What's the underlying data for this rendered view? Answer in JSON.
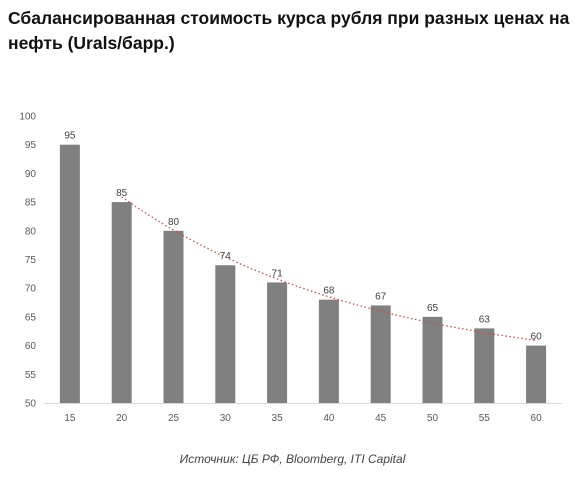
{
  "title": "Сбалансированная стоимость курса рубля при разных ценах на нефть (Urals/барр.)",
  "source": "Источник: ЦБ РФ, Bloomberg, ITI Capital",
  "chart_data": {
    "type": "bar",
    "title": "",
    "xlabel": "",
    "ylabel": "",
    "categories": [
      "15",
      "20",
      "25",
      "30",
      "35",
      "40",
      "45",
      "50",
      "55",
      "60"
    ],
    "series": [
      {
        "values": [
          95,
          85,
          80,
          74,
          71,
          68,
          67,
          65,
          63,
          60
        ]
      }
    ],
    "ylim": [
      50,
      100
    ],
    "yticks": [
      50,
      55,
      60,
      65,
      70,
      75,
      80,
      85,
      90,
      95,
      100
    ],
    "data_labels": true,
    "grid": false,
    "legend": "none",
    "trendline": {
      "style": "dotted",
      "start_category": "20"
    },
    "colors": {
      "bar": "#808080",
      "trendline": "#c0504d",
      "axis": "#d9d9d9"
    }
  }
}
